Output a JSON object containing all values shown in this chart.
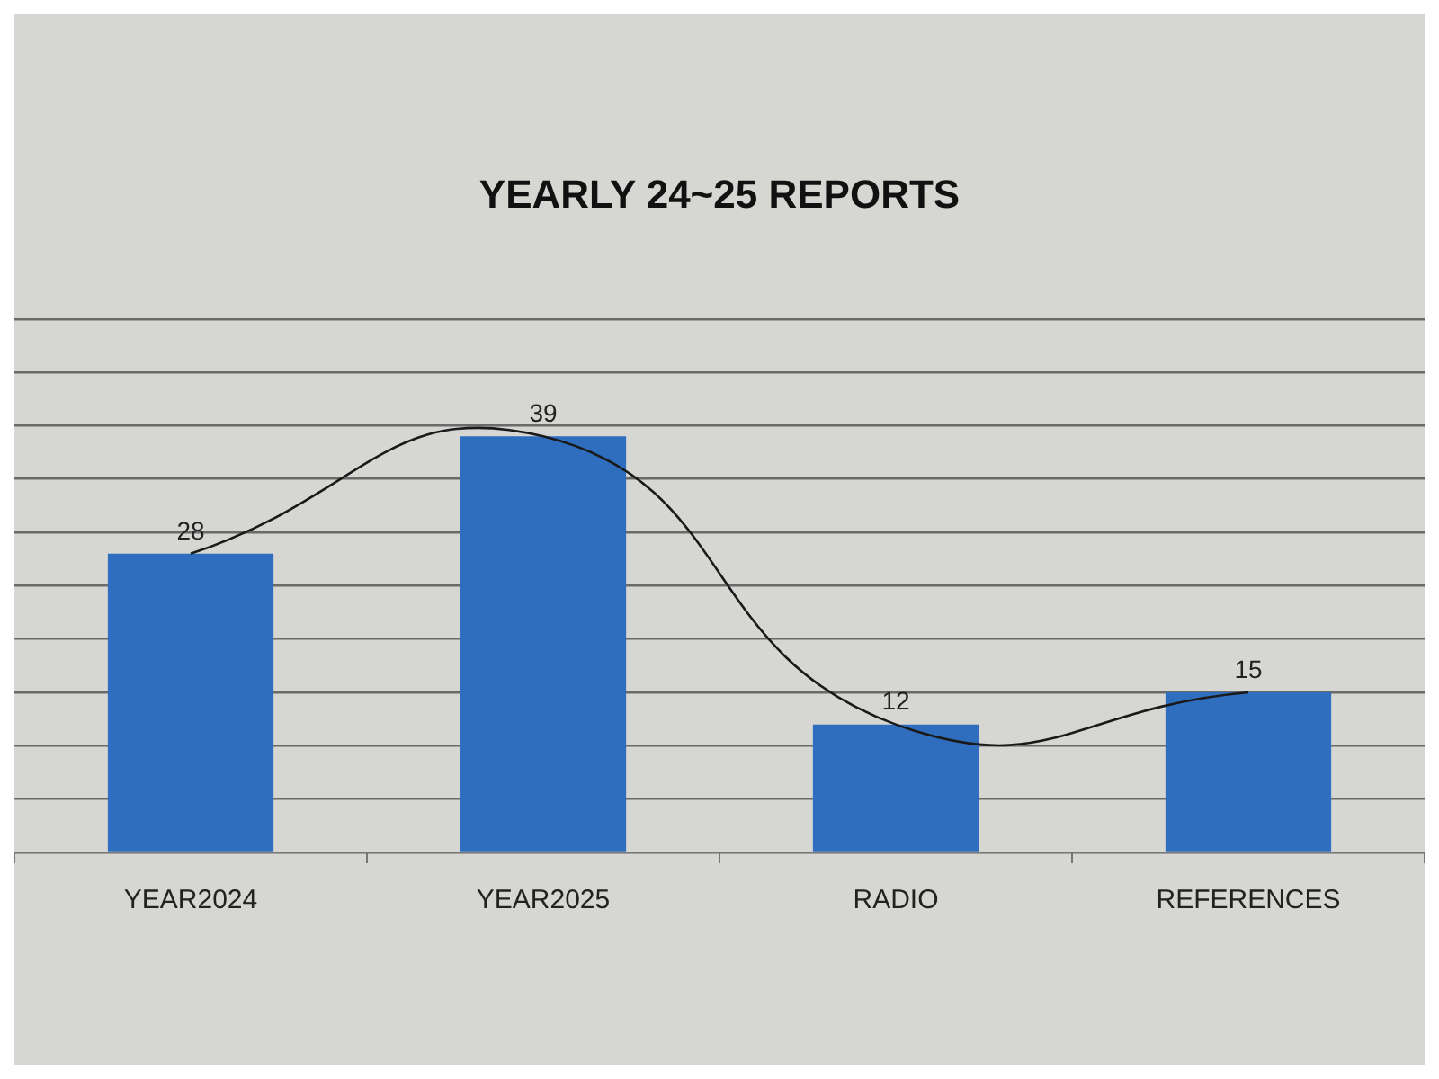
{
  "chart_data": {
    "type": "bar",
    "title": "YEARLY 24~25 REPORTS",
    "categories": [
      "YEAR2024",
      "YEAR2025",
      "RADIO",
      "REFERENCES"
    ],
    "series": [
      {
        "color": "#2f6ebf",
        "values": [
          28,
          39,
          12,
          15
        ],
        "value_labels": [
          "28",
          "39",
          "12",
          "15"
        ]
      },
      {
        "type": "line",
        "color": "#1a1a1a",
        "values": [
          28,
          39,
          12,
          15
        ]
      }
    ],
    "ylim": [
      0,
      50
    ],
    "yticks": [
      {
        "value": 0,
        "label": null
      },
      {
        "value": 5,
        "label": null
      },
      {
        "value": 10,
        "label": null
      },
      {
        "value": 15,
        "label": null
      },
      {
        "value": 20,
        "label": null
      },
      {
        "value": 25,
        "label": null
      },
      {
        "value": 30,
        "label": null
      },
      {
        "value": 35,
        "label": null
      },
      {
        "value": 40,
        "label": null
      },
      {
        "value": 45,
        "label": null
      },
      {
        "value": 50,
        "label": null
      }
    ],
    "grid": "y",
    "tick_labels": "x"
  }
}
